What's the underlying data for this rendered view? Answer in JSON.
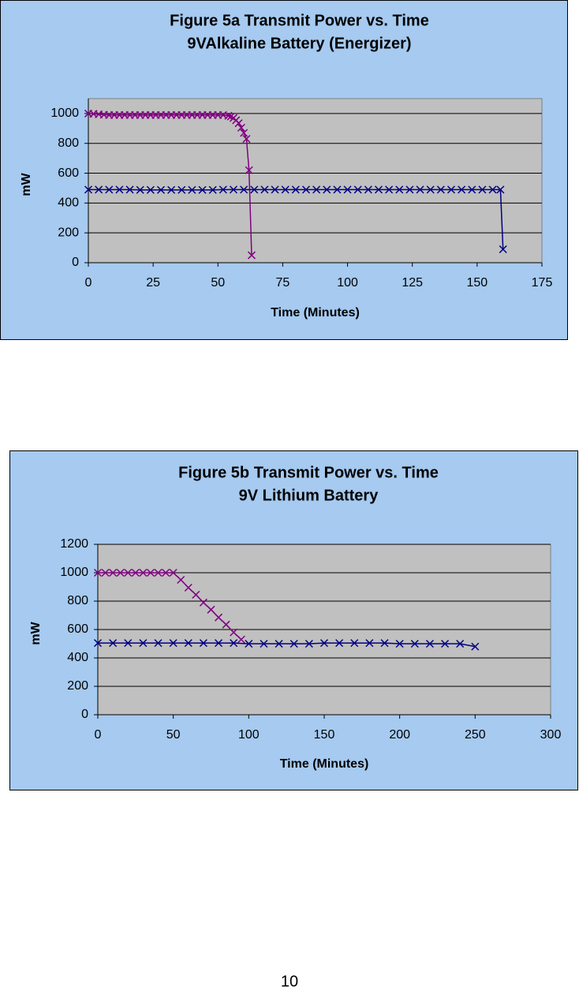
{
  "chart_data": [
    {
      "type": "line",
      "title": [
        "Figure 5a Transmit Power vs.  Time",
        "9VAlkaline Battery (Energizer)"
      ],
      "x_label": "Time (Minutes)",
      "y_label": "mW",
      "xlim": [
        0,
        175
      ],
      "xticks": [
        0,
        25,
        50,
        75,
        100,
        125,
        150,
        175
      ],
      "ylim": [
        0,
        1100
      ],
      "yticks": [
        0,
        200,
        400,
        600,
        800,
        1000
      ],
      "grid": true,
      "series": [
        {
          "color": "#800080",
          "x": [
            0,
            2,
            4,
            6,
            8,
            10,
            12,
            14,
            16,
            18,
            20,
            22,
            24,
            26,
            28,
            30,
            32,
            34,
            36,
            38,
            40,
            42,
            44,
            46,
            48,
            50,
            52,
            54,
            55,
            56,
            57,
            58,
            59,
            60,
            61,
            62,
            63
          ],
          "values": [
            1000,
            998,
            995,
            992,
            990,
            990,
            990,
            990,
            990,
            990,
            990,
            990,
            990,
            990,
            990,
            990,
            990,
            990,
            990,
            990,
            990,
            990,
            990,
            990,
            990,
            990,
            990,
            985,
            980,
            970,
            955,
            935,
            905,
            870,
            830,
            620,
            50
          ]
        },
        {
          "color": "#000080",
          "x": [
            0,
            4,
            8,
            12,
            16,
            20,
            24,
            28,
            32,
            36,
            40,
            44,
            48,
            52,
            56,
            60,
            64,
            68,
            72,
            76,
            80,
            84,
            88,
            92,
            96,
            100,
            104,
            108,
            112,
            116,
            120,
            124,
            128,
            132,
            136,
            140,
            144,
            148,
            152,
            156,
            159,
            160
          ],
          "values": [
            490,
            490,
            490,
            490,
            490,
            488,
            488,
            488,
            488,
            488,
            488,
            488,
            488,
            490,
            490,
            490,
            490,
            490,
            490,
            490,
            490,
            490,
            490,
            490,
            490,
            490,
            490,
            490,
            490,
            490,
            490,
            490,
            490,
            490,
            490,
            490,
            490,
            490,
            490,
            490,
            490,
            90
          ]
        }
      ]
    },
    {
      "type": "line",
      "title": [
        "Figure 5b Transmit Power vs. Time",
        "9V Lithium Battery"
      ],
      "x_label": "Time (Minutes)",
      "y_label": "mW",
      "xlim": [
        0,
        300
      ],
      "xticks": [
        0,
        50,
        100,
        150,
        200,
        250,
        300
      ],
      "ylim": [
        0,
        1200
      ],
      "yticks": [
        0,
        200,
        400,
        600,
        800,
        1000,
        1200
      ],
      "grid": true,
      "series": [
        {
          "color": "#800080",
          "x": [
            0,
            5,
            10,
            15,
            20,
            25,
            30,
            35,
            40,
            45,
            50,
            55,
            60,
            65,
            70,
            75,
            80,
            85,
            90,
            95
          ],
          "values": [
            1000,
            1000,
            1000,
            1000,
            1000,
            1000,
            1000,
            1000,
            1000,
            1000,
            1000,
            950,
            895,
            845,
            790,
            740,
            685,
            635,
            580,
            530
          ]
        },
        {
          "color": "#000080",
          "x": [
            0,
            10,
            20,
            30,
            40,
            50,
            60,
            70,
            80,
            90,
            100,
            110,
            120,
            130,
            140,
            150,
            160,
            170,
            180,
            190,
            200,
            210,
            220,
            230,
            240,
            250
          ],
          "values": [
            505,
            505,
            505,
            505,
            505,
            505,
            505,
            505,
            505,
            505,
            500,
            500,
            500,
            500,
            500,
            505,
            505,
            505,
            505,
            505,
            500,
            500,
            500,
            500,
            500,
            480
          ]
        }
      ]
    }
  ],
  "page_number": "10"
}
